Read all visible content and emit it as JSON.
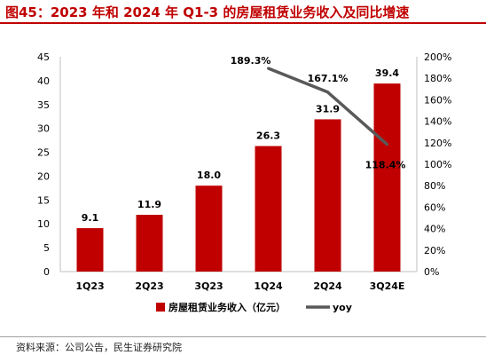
{
  "title": "图45：2023 年和 2024 年 Q1-3 的房屋租赁业务收入及同比增速",
  "source": "资料来源：公司公告，民生证券研究院",
  "chart_data": {
    "type": "bar",
    "categories": [
      "1Q23",
      "2Q23",
      "3Q23",
      "1Q24",
      "2Q24",
      "3Q24E"
    ],
    "series": [
      {
        "name": "房屋租赁业务收入（亿元）",
        "type": "bar",
        "axis": "left",
        "color": "#c00000",
        "values": [
          9.1,
          11.9,
          18.0,
          26.3,
          31.9,
          39.4
        ],
        "labels": [
          "9.1",
          "11.9",
          "18.0",
          "26.3",
          "31.9",
          "39.4"
        ]
      },
      {
        "name": "yoy",
        "type": "line",
        "axis": "right",
        "color": "#595959",
        "values": [
          null,
          null,
          null,
          189.3,
          167.1,
          118.4
        ],
        "labels": [
          "",
          "",
          "",
          "189.3%",
          "167.1%",
          "118.4%"
        ]
      }
    ],
    "y_left": {
      "range": [
        0,
        45
      ],
      "ticks": [
        "0",
        "5",
        "10",
        "15",
        "20",
        "25",
        "30",
        "35",
        "40",
        "45"
      ]
    },
    "y_right": {
      "range": [
        0,
        200
      ],
      "ticks": [
        "0%",
        "20%",
        "40%",
        "60%",
        "80%",
        "100%",
        "120%",
        "140%",
        "160%",
        "180%",
        "200%"
      ]
    },
    "grid": false,
    "legend": "bottom"
  }
}
